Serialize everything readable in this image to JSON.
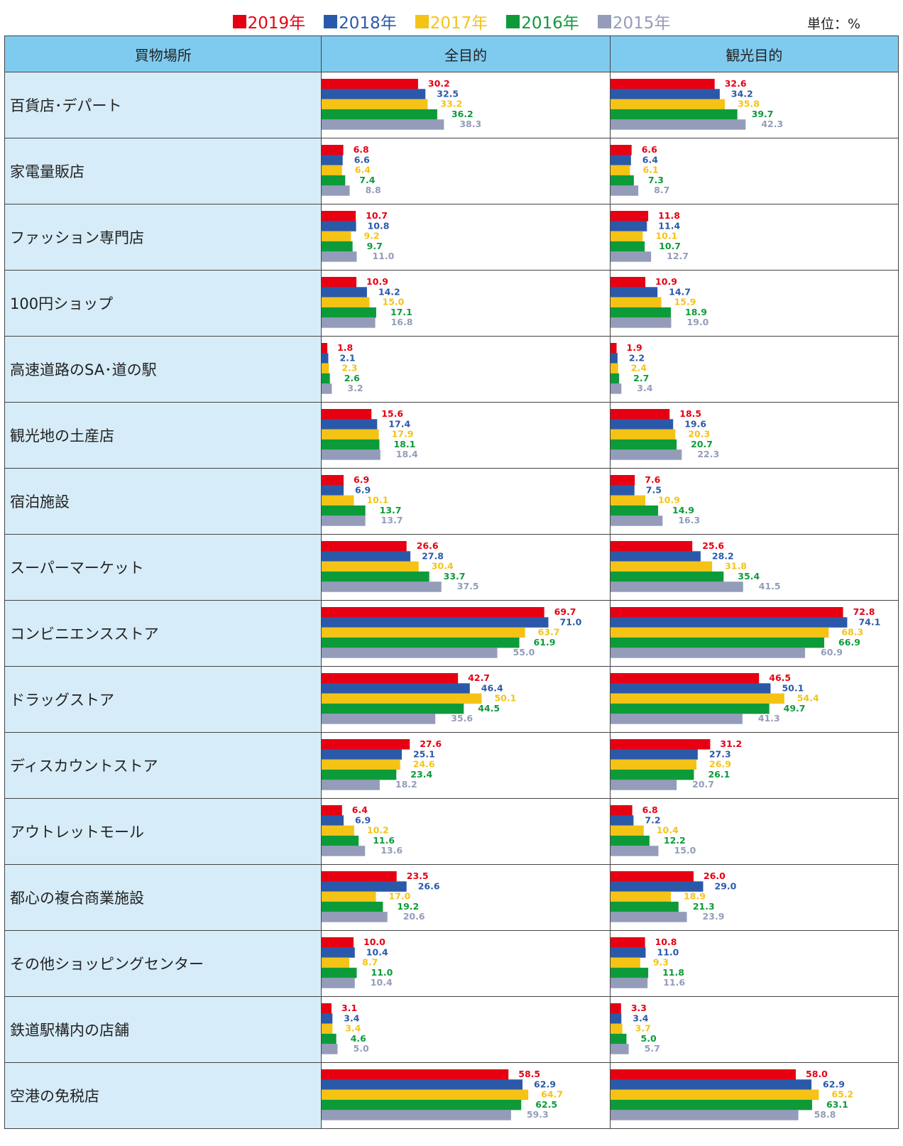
{
  "legend": [
    {
      "label": "2019年",
      "color": "#e60012"
    },
    {
      "label": "2018年",
      "color": "#2b59aa"
    },
    {
      "label": "2017年",
      "color": "#f5c315"
    },
    {
      "label": "2016年",
      "color": "#0d9b3a"
    },
    {
      "label": "2015年",
      "color": "#949cba"
    }
  ],
  "unit": "単位：%",
  "header": {
    "category": "買物場所",
    "all_purpose": "全目的",
    "sightseeing": "観光目的"
  },
  "chart_data": {
    "type": "bar",
    "orientation": "horizontal",
    "unit": "%",
    "xlim": [
      0,
      80
    ],
    "series_names": [
      "2019年",
      "2018年",
      "2017年",
      "2016年",
      "2015年"
    ],
    "categories": [
      "百貨店･デパート",
      "家電量販店",
      "ファッション専門店",
      "100円ショップ",
      "高速道路のSA･道の駅",
      "観光地の土産店",
      "宿泊施設",
      "スーパーマーケット",
      "コンビニエンスストア",
      "ドラッグストア",
      "ディスカウントストア",
      "アウトレットモール",
      "都心の複合商業施設",
      "その他ショッピングセンター",
      "鉄道駅構内の店舗",
      "空港の免税店"
    ],
    "panels": [
      {
        "name": "全目的",
        "values": [
          [
            30.2,
            32.5,
            33.2,
            36.2,
            38.3
          ],
          [
            6.8,
            6.6,
            6.4,
            7.4,
            8.8
          ],
          [
            10.7,
            10.8,
            9.2,
            9.7,
            11.0
          ],
          [
            10.9,
            14.2,
            15.0,
            17.1,
            16.8
          ],
          [
            1.8,
            2.1,
            2.3,
            2.6,
            3.2
          ],
          [
            15.6,
            17.4,
            17.9,
            18.1,
            18.4
          ],
          [
            6.9,
            6.9,
            10.1,
            13.7,
            13.7
          ],
          [
            26.6,
            27.8,
            30.4,
            33.7,
            37.5
          ],
          [
            69.7,
            71.0,
            63.7,
            61.9,
            55.0
          ],
          [
            42.7,
            46.4,
            50.1,
            44.5,
            35.6
          ],
          [
            27.6,
            25.1,
            24.6,
            23.4,
            18.2
          ],
          [
            6.4,
            6.9,
            10.2,
            11.6,
            13.6
          ],
          [
            23.5,
            26.6,
            17.0,
            19.2,
            20.6
          ],
          [
            10.0,
            10.4,
            8.7,
            11.0,
            10.4
          ],
          [
            3.1,
            3.4,
            3.4,
            4.6,
            5.0
          ],
          [
            58.5,
            62.9,
            64.7,
            62.5,
            59.3
          ]
        ]
      },
      {
        "name": "観光目的",
        "values": [
          [
            32.6,
            34.2,
            35.8,
            39.7,
            42.3
          ],
          [
            6.6,
            6.4,
            6.1,
            7.3,
            8.7
          ],
          [
            11.8,
            11.4,
            10.1,
            10.7,
            12.7
          ],
          [
            10.9,
            14.7,
            15.9,
            18.9,
            19.0
          ],
          [
            1.9,
            2.2,
            2.4,
            2.7,
            3.4
          ],
          [
            18.5,
            19.6,
            20.3,
            20.7,
            22.3
          ],
          [
            7.6,
            7.5,
            10.9,
            14.9,
            16.3
          ],
          [
            25.6,
            28.2,
            31.8,
            35.4,
            41.5
          ],
          [
            72.8,
            74.1,
            68.3,
            66.9,
            60.9
          ],
          [
            46.5,
            50.1,
            54.4,
            49.7,
            41.3
          ],
          [
            31.2,
            27.3,
            26.9,
            26.1,
            20.7
          ],
          [
            6.8,
            7.2,
            10.4,
            12.2,
            15.0
          ],
          [
            26.0,
            29.0,
            18.9,
            21.3,
            23.9
          ],
          [
            10.8,
            11.0,
            9.3,
            11.8,
            11.6
          ],
          [
            3.3,
            3.4,
            3.7,
            5.0,
            5.7
          ],
          [
            58.0,
            62.9,
            65.2,
            63.1,
            58.8
          ]
        ]
      }
    ]
  }
}
